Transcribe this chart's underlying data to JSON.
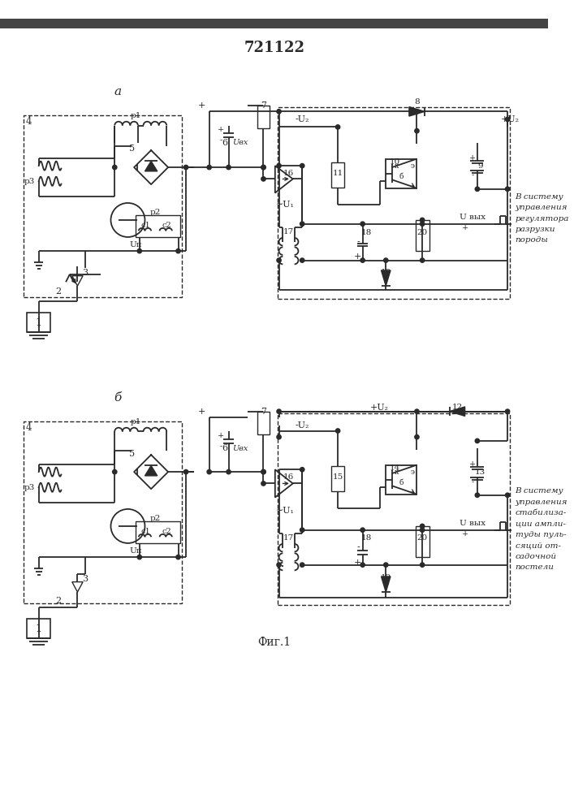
{
  "title": "721122",
  "fig_label": "Фиг.1",
  "label_a": "а",
  "label_b": "б",
  "bg_color": "#ffffff",
  "line_color": "#2a2a2a",
  "dash_color": "#2a2a2a",
  "title_fontsize": 13,
  "right_text_a": [
    "В систему",
    "управления",
    "регулятора",
    "разрузки",
    "породы"
  ],
  "right_text_b": [
    "В систему",
    "управления",
    "стабилиза-",
    "ции ампли-",
    "туды пуль-",
    "сяций от-",
    "садочной",
    "постели"
  ]
}
